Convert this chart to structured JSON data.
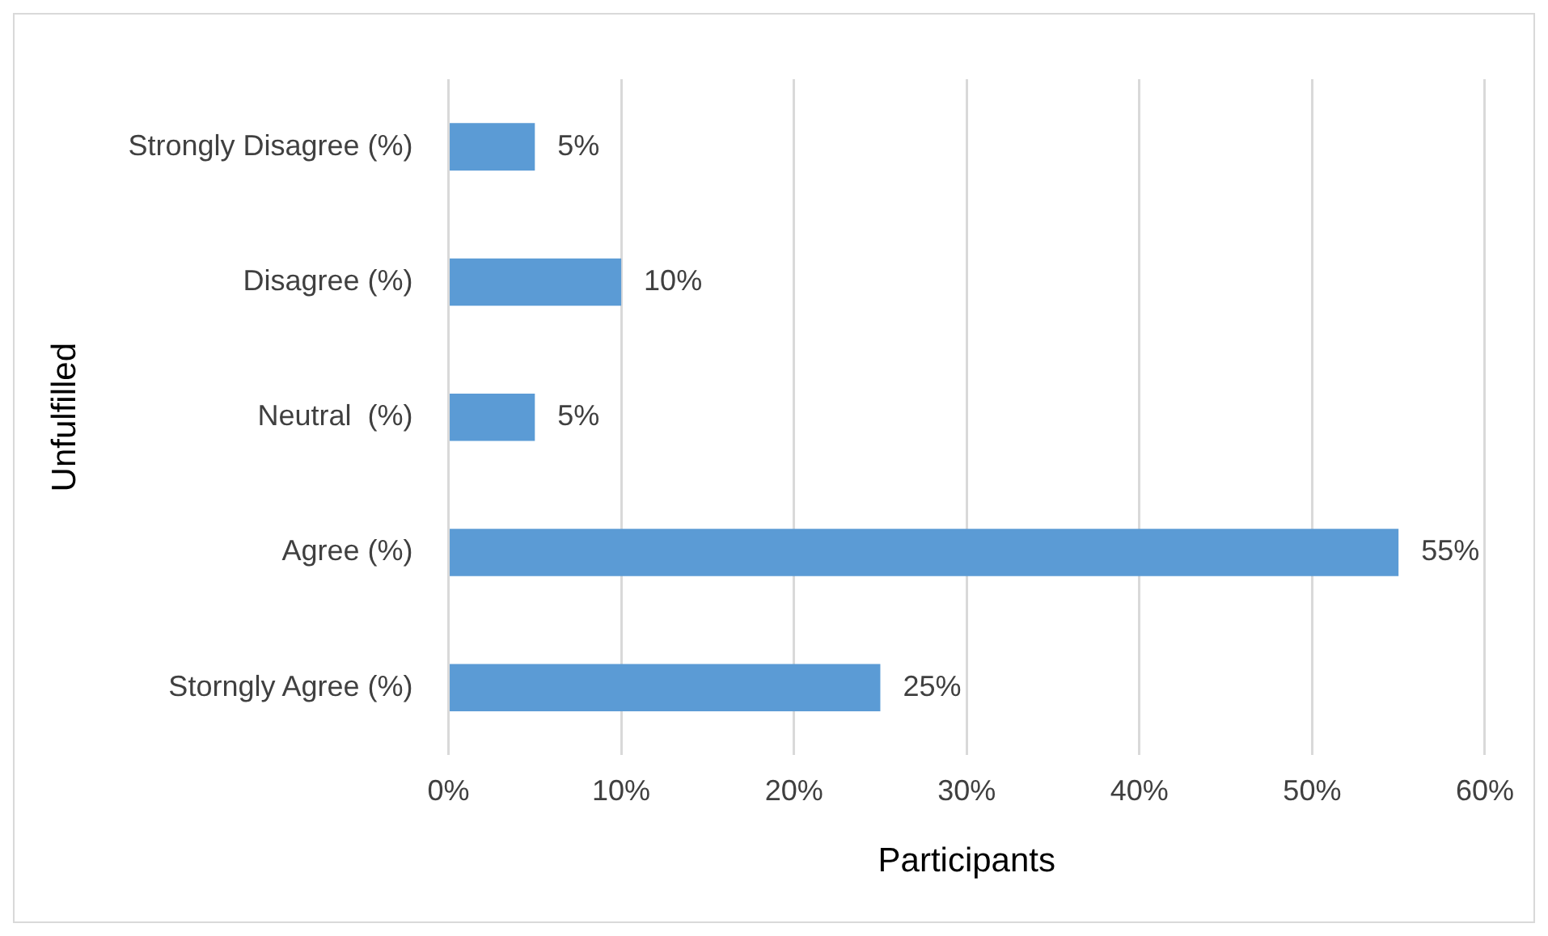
{
  "chart_data": {
    "type": "bar",
    "orientation": "horizontal",
    "xlabel": "Participants",
    "ylabel": "Unfulfilled",
    "categories": [
      "Strongly Disagree (%)",
      "Disagree (%)",
      "Neutral  (%)",
      "Agree (%)",
      "Storngly Agree (%)"
    ],
    "values": [
      5,
      10,
      5,
      55,
      25
    ],
    "value_labels": [
      "5%",
      "10%",
      "5%",
      "55%",
      "25%"
    ],
    "color": "#5b9bd5",
    "xlim": [
      0,
      60
    ],
    "xticks": [
      {
        "value": 0,
        "label": "0%"
      },
      {
        "value": 10,
        "label": "10%"
      },
      {
        "value": 20,
        "label": "20%"
      },
      {
        "value": 30,
        "label": "30%"
      },
      {
        "value": 40,
        "label": "40%"
      },
      {
        "value": 50,
        "label": "50%"
      },
      {
        "value": 60,
        "label": "60%"
      }
    ],
    "grid": "x",
    "legend": false
  }
}
